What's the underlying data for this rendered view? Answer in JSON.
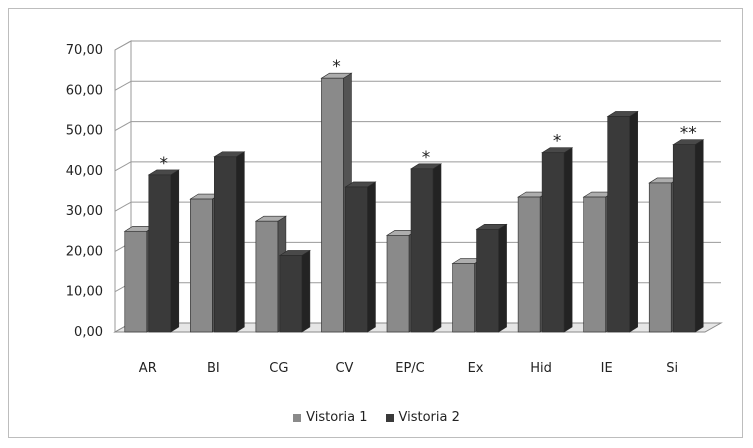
{
  "chart_data": {
    "type": "bar",
    "title": "",
    "xlabel": "",
    "ylabel": "",
    "categories": [
      "AR",
      "BI",
      "CG",
      "CV",
      "EP/C",
      "Ex",
      "Hid",
      "IE",
      "Si"
    ],
    "series": [
      {
        "name": "Vistoria 1",
        "values": [
          25.0,
          33.0,
          27.5,
          63.0,
          24.0,
          17.0,
          33.5,
          33.5,
          37.0
        ],
        "color": "#8a8a8a"
      },
      {
        "name": "Vistoria 2",
        "values": [
          39.0,
          43.5,
          19.0,
          36.0,
          40.5,
          25.5,
          44.5,
          53.5,
          46.5
        ],
        "color": "#3a3a3a"
      }
    ],
    "annotations": [
      {
        "category": "AR",
        "series": "Vistoria 2",
        "text": "*"
      },
      {
        "category": "CV",
        "series": "Vistoria 1",
        "text": "*"
      },
      {
        "category": "EP/C",
        "series": "Vistoria 2",
        "text": "*"
      },
      {
        "category": "Hid",
        "series": "Vistoria 2",
        "text": "*"
      },
      {
        "category": "Si",
        "series": "Vistoria 2",
        "text": "**"
      }
    ],
    "ylim": [
      0,
      70
    ],
    "yticks": [
      "0,00",
      "10,00",
      "20,00",
      "30,00",
      "40,00",
      "50,00",
      "60,00",
      "70,00"
    ],
    "grid": true,
    "legend": "bottom"
  }
}
